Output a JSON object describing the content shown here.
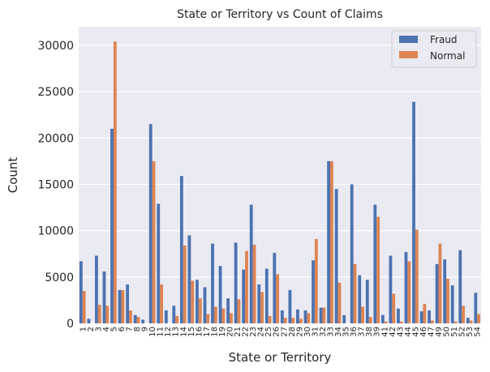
{
  "chart_data": {
    "type": "bar",
    "title": "State or Territory vs Count of Claims",
    "xlabel": "State or Territory",
    "ylabel": "Count",
    "ylim": [
      0,
      32000
    ],
    "yticks": [
      0,
      5000,
      10000,
      15000,
      20000,
      25000,
      30000
    ],
    "grid": true,
    "legend_position": "top-right",
    "categories": [
      "1",
      "2",
      "3",
      "4",
      "5",
      "6",
      "7",
      "8",
      "9",
      "10",
      "11",
      "12",
      "13",
      "14",
      "15",
      "16",
      "17",
      "18",
      "19",
      "20",
      "21",
      "22",
      "23",
      "24",
      "25",
      "26",
      "27",
      "28",
      "29",
      "30",
      "31",
      "32",
      "33",
      "34",
      "35",
      "36",
      "37",
      "38",
      "39",
      "41",
      "42",
      "43",
      "44",
      "45",
      "46",
      "47",
      "49",
      "50",
      "51",
      "52",
      "53",
      "54"
    ],
    "series": [
      {
        "name": "Fraud",
        "color": "#4c72b0",
        "values": [
          6700,
          500,
          7300,
          5600,
          21000,
          3600,
          4200,
          900,
          400,
          21500,
          12900,
          1400,
          1900,
          15900,
          9500,
          4700,
          3900,
          8600,
          6200,
          2700,
          8700,
          5800,
          12800,
          4200,
          5900,
          7600,
          1400,
          3600,
          1500,
          1400,
          6800,
          1700,
          17500,
          14500,
          900,
          15000,
          5200,
          4700,
          12800,
          900,
          7300,
          1600,
          7700,
          23900,
          1300,
          1400,
          6400,
          6900,
          4100,
          7900,
          600,
          3300
        ]
      },
      {
        "name": "Normal",
        "color": "#dd8452",
        "values": [
          3500,
          0,
          2000,
          1900,
          30400,
          3600,
          1400,
          700,
          0,
          17500,
          4200,
          0,
          800,
          8400,
          4600,
          2700,
          1000,
          1800,
          1600,
          1100,
          2600,
          7800,
          8500,
          3400,
          800,
          5300,
          600,
          600,
          500,
          1100,
          9100,
          1700,
          17500,
          4400,
          0,
          6400,
          1800,
          700,
          11500,
          200,
          3200,
          200,
          6700,
          10100,
          2100,
          300,
          8600,
          4800,
          200,
          1900,
          300,
          1000
        ]
      }
    ]
  }
}
